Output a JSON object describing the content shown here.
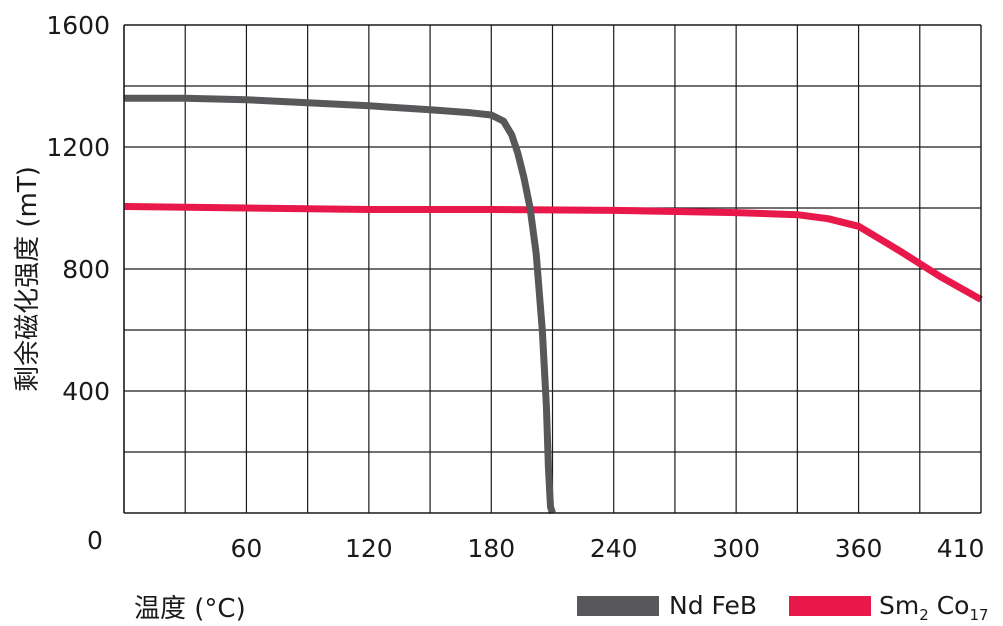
{
  "chart_data": {
    "type": "line",
    "xlabel": "温度 (°C)",
    "ylabel": "剩余磁化强度 (mT)",
    "origin_label": "0",
    "xlim": [
      0,
      420
    ],
    "ylim": [
      0,
      1600
    ],
    "x_ticks": [
      60,
      120,
      180,
      240,
      300,
      360,
      410
    ],
    "y_ticks": [
      400,
      800,
      1200,
      1600
    ],
    "grid": true,
    "grid_x_step": 30,
    "grid_y_step": 200,
    "legend_position": "bottom-right",
    "series": [
      {
        "name": "Nd FeB",
        "name_main": "Nd FeB",
        "color": "#58585a",
        "points": [
          [
            0,
            1360
          ],
          [
            30,
            1360
          ],
          [
            60,
            1355
          ],
          [
            90,
            1345
          ],
          [
            120,
            1335
          ],
          [
            150,
            1322
          ],
          [
            170,
            1312
          ],
          [
            180,
            1305
          ],
          [
            186,
            1285
          ],
          [
            190,
            1240
          ],
          [
            193,
            1180
          ],
          [
            196,
            1100
          ],
          [
            199,
            1000
          ],
          [
            202,
            850
          ],
          [
            205,
            600
          ],
          [
            207,
            350
          ],
          [
            208,
            150
          ],
          [
            209,
            20
          ],
          [
            210,
            0
          ]
        ]
      },
      {
        "name": "Sm2 Co17",
        "name_main": "Sm",
        "name_sub1": "2",
        "name_mid": " Co",
        "name_sub2": "17",
        "color": "#e8194a",
        "points": [
          [
            0,
            1005
          ],
          [
            60,
            1000
          ],
          [
            120,
            995
          ],
          [
            180,
            995
          ],
          [
            240,
            992
          ],
          [
            300,
            985
          ],
          [
            330,
            978
          ],
          [
            345,
            965
          ],
          [
            360,
            940
          ],
          [
            380,
            860
          ],
          [
            400,
            775
          ],
          [
            420,
            700
          ]
        ]
      }
    ]
  }
}
